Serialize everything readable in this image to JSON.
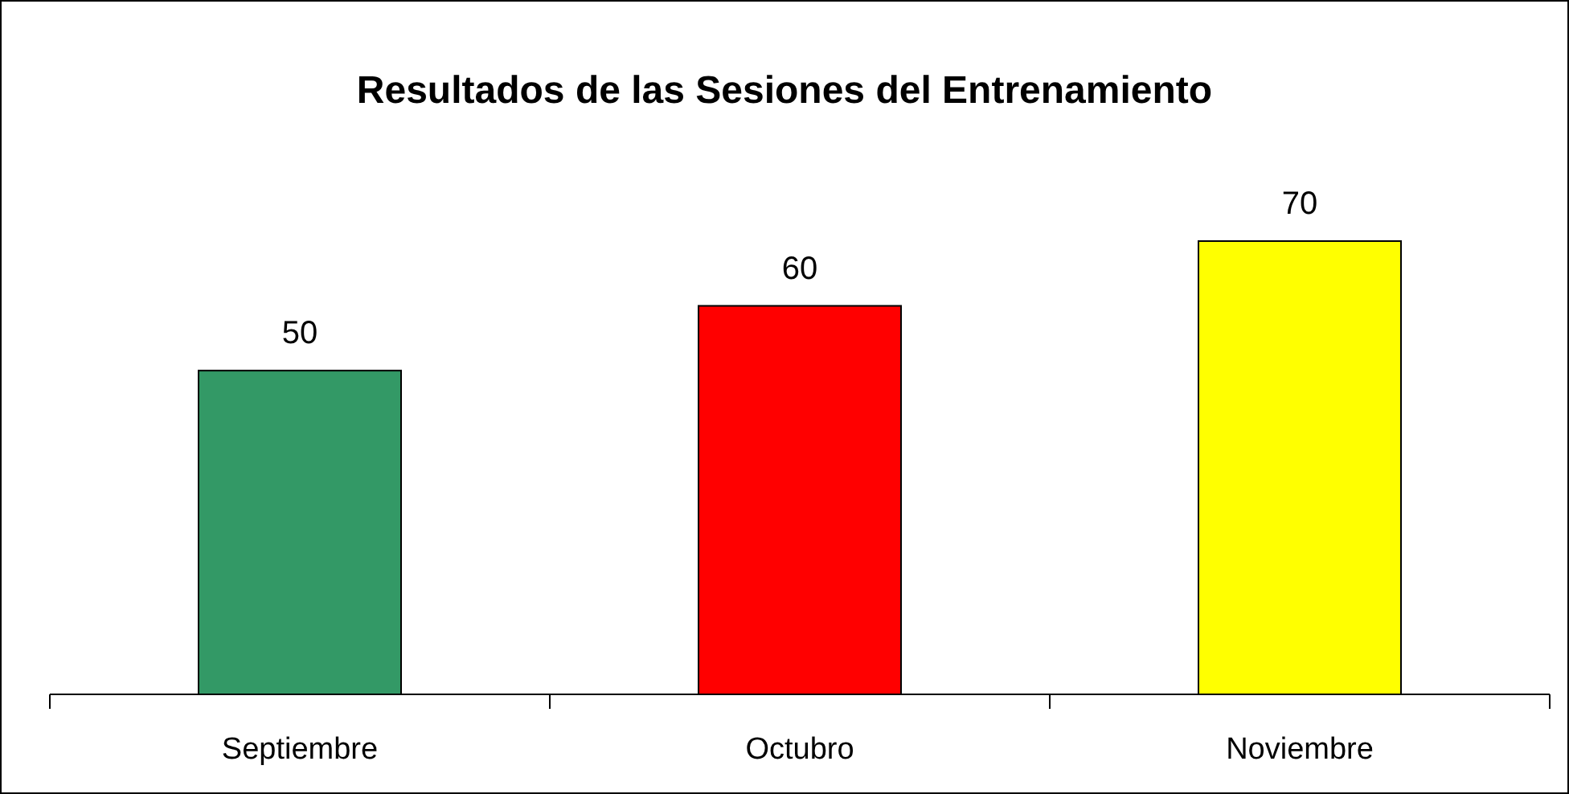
{
  "chart_data": {
    "type": "bar",
    "title": "Resultados de las Sesiones del Entrenamiento",
    "categories": [
      "Septiembre",
      "Octubro",
      "Noviembre"
    ],
    "values": [
      50,
      60,
      70
    ],
    "colors": [
      "#339966",
      "#ff0000",
      "#ffff00"
    ],
    "data_labels": true
  }
}
